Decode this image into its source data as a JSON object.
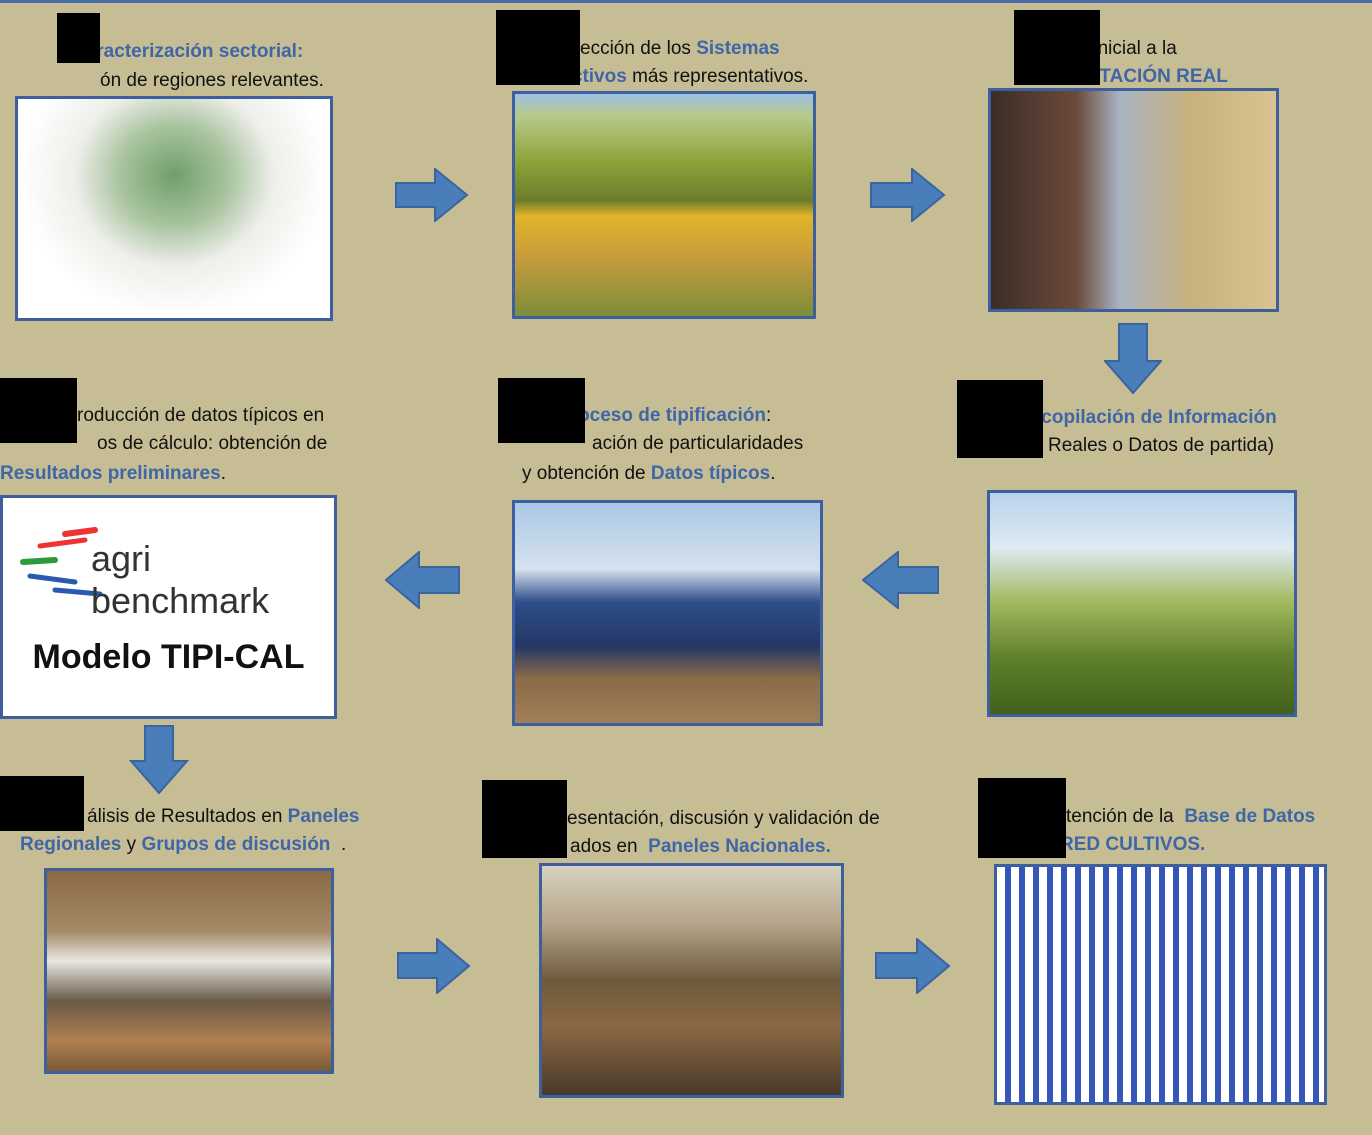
{
  "steps": [
    {
      "lines": [
        [
          {
            "text": "Caracterización sectorial:",
            "highlight": true
          }
        ],
        [
          {
            "text": "ón de regiones relevantes."
          }
        ]
      ]
    },
    {
      "lines": [
        [
          {
            "text": "ección de los "
          },
          {
            "text": "Sistemas",
            "highlight": true
          }
        ],
        [
          {
            "text": "Productivos",
            "highlight": true
          },
          {
            "text": " más representativos."
          }
        ]
      ]
    },
    {
      "lines": [
        [
          {
            "text": "ita inicial a la"
          }
        ],
        [
          {
            "text": "EXPLOTACIÓN REAL",
            "highlight": true
          }
        ]
      ]
    },
    {
      "lines": [
        [
          {
            "text": "roducción de datos típicos en"
          }
        ],
        [
          {
            "text": "os de cálculo: obtención de"
          }
        ],
        [
          {
            "text": "Resultados preliminares",
            "highlight": true
          },
          {
            "text": "."
          }
        ]
      ]
    },
    {
      "lines": [
        [
          {
            "text": "Proceso de tipificación",
            "highlight": true
          },
          {
            "text": ":"
          }
        ],
        [
          {
            "text": "ación de particularidades"
          }
        ],
        [
          {
            "text": "y obtención de "
          },
          {
            "text": "Datos típicos",
            "highlight": true
          },
          {
            "text": "."
          }
        ]
      ]
    },
    {
      "lines": [
        [
          {
            "text": "Recopilación de Información",
            "highlight": true
          }
        ],
        [
          {
            "text": "Reales o Datos de partida)"
          }
        ]
      ]
    },
    {
      "lines": [
        [
          {
            "text": "álisis de Resultados en "
          },
          {
            "text": "Paneles",
            "highlight": true
          }
        ],
        [
          {
            "text": "Regionales",
            "highlight": true
          },
          {
            "text": " y "
          },
          {
            "text": "Grupos de discusión",
            "highlight": true
          },
          {
            "text": "  ."
          }
        ]
      ]
    },
    {
      "lines": [
        [
          {
            "text": "esentación, discusión y validación de"
          }
        ],
        [
          {
            "text": "ados en  "
          },
          {
            "text": "Paneles Nacionales.",
            "highlight": true
          }
        ]
      ]
    },
    {
      "lines": [
        [
          {
            "text": "tención de la  "
          },
          {
            "text": "Base de Datos",
            "highlight": true
          }
        ],
        [
          {
            "text": "RED CULTIVOS.",
            "highlight": true
          }
        ]
      ]
    }
  ],
  "logo": {
    "brand": "agri benchmark",
    "model": "Modelo TIPI-CAL"
  }
}
